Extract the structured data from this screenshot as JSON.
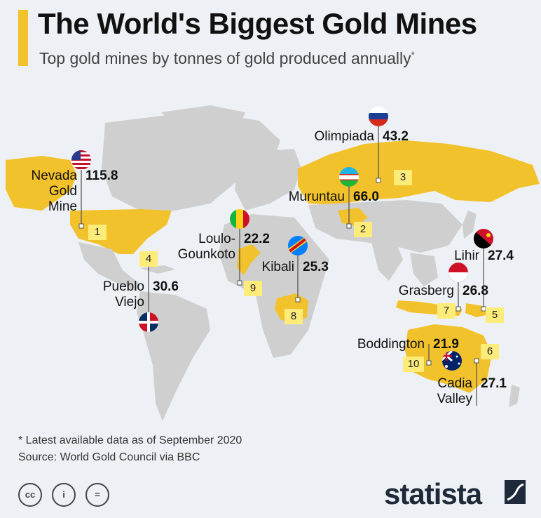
{
  "title": "The World's Biggest Gold Mines",
  "subtitle": "Top gold mines by tonnes of gold produced annually",
  "subtitle_marker": "*",
  "mines": [
    {
      "rank": "1",
      "name": [
        "Nevada",
        "Gold",
        "Mine"
      ],
      "tonnes": "115.8",
      "flag": "usa-flag-icon"
    },
    {
      "rank": "2",
      "name": [
        "Muruntau"
      ],
      "tonnes": "66.0",
      "flag": "uzbekistan-flag-icon"
    },
    {
      "rank": "3",
      "name": [
        "Olimpiada"
      ],
      "tonnes": "43.2",
      "flag": "russia-flag-icon"
    },
    {
      "rank": "4",
      "name": [
        "Pueblo",
        "Viejo"
      ],
      "tonnes": "30.6",
      "flag": "dominican-republic-flag-icon"
    },
    {
      "rank": "5",
      "name": [
        "Lihir"
      ],
      "tonnes": "27.4",
      "flag": "papua-new-guinea-flag-icon"
    },
    {
      "rank": "6",
      "name": [
        "Cadia",
        "Valley"
      ],
      "tonnes": "27.1",
      "flag": "australia-flag-icon"
    },
    {
      "rank": "7",
      "name": [
        "Grasberg"
      ],
      "tonnes": "26.8",
      "flag": "indonesia-flag-icon"
    },
    {
      "rank": "8",
      "name": [
        "Kibali"
      ],
      "tonnes": "25.3",
      "flag": "dr-congo-flag-icon"
    },
    {
      "rank": "9",
      "name": [
        "Loulo-",
        "Gounkoto"
      ],
      "tonnes": "22.2",
      "flag": "mali-flag-icon"
    },
    {
      "rank": "10",
      "name": [
        "Boddington"
      ],
      "tonnes": "21.9",
      "flag": "australia-flag-icon"
    }
  ],
  "footnote": "* Latest available data as of September 2020",
  "source": "Source: World Gold Council via BBC",
  "license_icons": [
    "cc",
    "i",
    "="
  ],
  "brand": "statista",
  "colors": {
    "highlight": "#f2c22c",
    "land": "#cfcfcf",
    "background": "#edf1f5",
    "rank_box": "#fdeb7a"
  }
}
